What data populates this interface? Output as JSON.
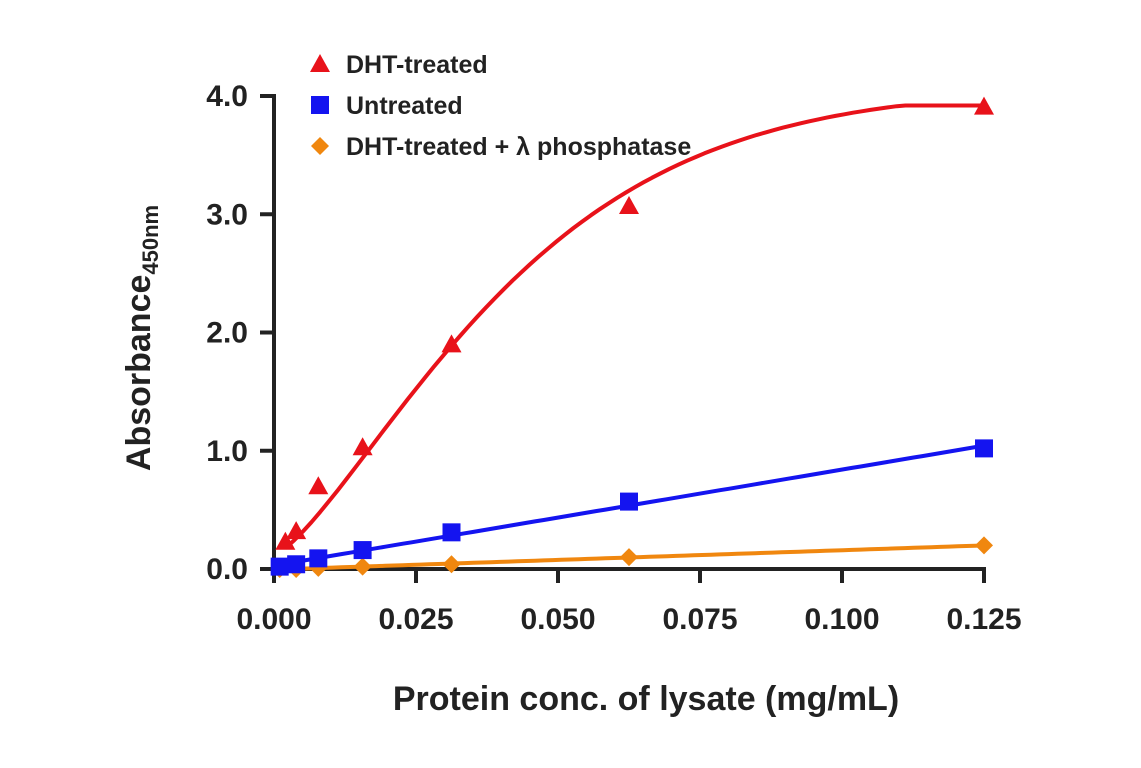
{
  "chart_data": {
    "type": "line",
    "title": "",
    "xlabel": "Protein conc. of lysate (mg/mL)",
    "ylabel": "Absorbance",
    "ylabel_subscript": "450nm",
    "xlim": [
      0,
      0.125
    ],
    "ylim": [
      0,
      4.0
    ],
    "x_ticks": [
      "0.000",
      "0.025",
      "0.050",
      "0.075",
      "0.100",
      "0.125"
    ],
    "y_ticks": [
      "0.0",
      "1.0",
      "2.0",
      "3.0",
      "4.0"
    ],
    "grid": false,
    "legend_position": "top-left",
    "series": [
      {
        "name": "DHT-treated",
        "marker": "triangle",
        "color": "#e8121a",
        "x": [
          0.002,
          0.0039,
          0.0078,
          0.0156,
          0.03125,
          0.0625,
          0.125
        ],
        "y": [
          0.23,
          0.32,
          0.7,
          1.03,
          1.9,
          3.07,
          3.91
        ]
      },
      {
        "name": "Untreated",
        "marker": "square",
        "color": "#1414f0",
        "x": [
          0.001,
          0.0039,
          0.0078,
          0.0156,
          0.03125,
          0.0625,
          0.125
        ],
        "y": [
          0.02,
          0.04,
          0.09,
          0.16,
          0.31,
          0.57,
          1.02
        ]
      },
      {
        "name": "DHT-treated + λ phosphatase",
        "marker": "diamond",
        "color": "#f0870f",
        "x": [
          0.001,
          0.0039,
          0.0078,
          0.0156,
          0.03125,
          0.0625,
          0.125
        ],
        "y": [
          0.0,
          0.0,
          0.01,
          0.02,
          0.04,
          0.1,
          0.2
        ]
      }
    ]
  }
}
